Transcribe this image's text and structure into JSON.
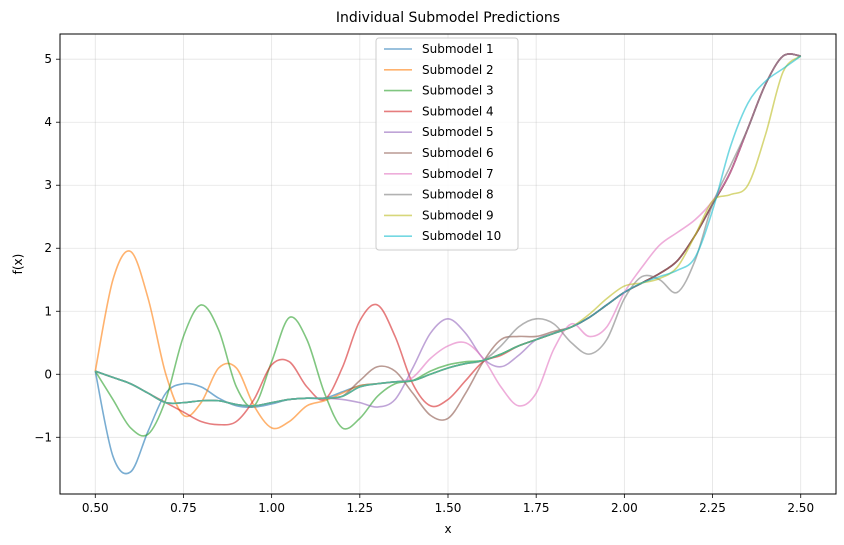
{
  "chart_data": {
    "type": "line",
    "title": "Individual Submodel Predictions",
    "xlabel": "x",
    "ylabel": "f(x)",
    "xlim": [
      0.4,
      2.6
    ],
    "ylim": [
      -1.9,
      5.4
    ],
    "xticks": [
      0.5,
      0.75,
      1.0,
      1.25,
      1.5,
      1.75,
      2.0,
      2.25,
      2.5
    ],
    "xtick_labels": [
      "0.50",
      "0.75",
      "1.00",
      "1.25",
      "1.50",
      "1.75",
      "2.00",
      "2.25",
      "2.50"
    ],
    "yticks": [
      -1,
      0,
      1,
      2,
      3,
      4,
      5
    ],
    "ytick_labels": [
      "−1",
      "0",
      "1",
      "2",
      "3",
      "4",
      "5"
    ],
    "grid": true,
    "legend_position": "top-center",
    "series": [
      {
        "name": "Submodel 1",
        "color": "#1f77b4",
        "x": [
          0.5,
          0.55,
          0.6,
          0.65,
          0.7,
          0.75,
          0.8,
          0.85,
          0.9,
          0.95,
          1.0,
          1.05,
          1.1,
          1.15,
          1.2,
          1.25,
          1.3,
          1.35,
          1.4,
          1.45,
          1.5,
          1.55,
          1.6,
          1.65,
          1.7,
          1.75,
          1.8,
          1.85,
          1.9,
          1.95,
          2.0,
          2.05,
          2.1,
          2.15,
          2.2,
          2.25,
          2.3,
          2.35,
          2.4,
          2.45,
          2.5
        ],
        "y": [
          0.05,
          -1.3,
          -1.55,
          -0.9,
          -0.3,
          -0.15,
          -0.2,
          -0.38,
          -0.5,
          -0.52,
          -0.47,
          -0.4,
          -0.38,
          -0.38,
          -0.28,
          -0.18,
          -0.15,
          -0.12,
          -0.1,
          0.0,
          0.1,
          0.17,
          0.22,
          0.32,
          0.45,
          0.55,
          0.65,
          0.75,
          0.9,
          1.1,
          1.3,
          1.45,
          1.6,
          1.8,
          2.2,
          2.7,
          3.2,
          3.9,
          4.6,
          5.05,
          5.05
        ]
      },
      {
        "name": "Submodel 2",
        "color": "#ff7f0e",
        "x": [
          0.5,
          0.55,
          0.6,
          0.65,
          0.7,
          0.75,
          0.8,
          0.85,
          0.9,
          0.95,
          1.0,
          1.05,
          1.1,
          1.15,
          1.2,
          1.25,
          1.3,
          1.35,
          1.4,
          1.45,
          1.5,
          1.55,
          1.6,
          1.65,
          1.7,
          1.75,
          1.8,
          1.85,
          1.9,
          1.95,
          2.0,
          2.05,
          2.1,
          2.15,
          2.2,
          2.25,
          2.3,
          2.35,
          2.4,
          2.45,
          2.5
        ],
        "y": [
          0.05,
          1.5,
          1.95,
          1.2,
          0.0,
          -0.65,
          -0.45,
          0.1,
          0.1,
          -0.5,
          -0.85,
          -0.75,
          -0.5,
          -0.42,
          -0.3,
          -0.18,
          -0.15,
          -0.12,
          -0.1,
          0.0,
          0.1,
          0.17,
          0.22,
          0.32,
          0.45,
          0.55,
          0.65,
          0.75,
          0.9,
          1.1,
          1.3,
          1.45,
          1.6,
          1.8,
          2.2,
          2.7,
          3.2,
          3.9,
          4.6,
          5.05,
          5.05
        ]
      },
      {
        "name": "Submodel 3",
        "color": "#2ca02c",
        "x": [
          0.5,
          0.55,
          0.6,
          0.65,
          0.7,
          0.75,
          0.8,
          0.85,
          0.9,
          0.95,
          1.0,
          1.05,
          1.1,
          1.15,
          1.2,
          1.25,
          1.3,
          1.35,
          1.4,
          1.45,
          1.5,
          1.55,
          1.6,
          1.65,
          1.7,
          1.75,
          1.8,
          1.85,
          1.9,
          1.95,
          2.0,
          2.05,
          2.1,
          2.15,
          2.2,
          2.25,
          2.3,
          2.35,
          2.4,
          2.45,
          2.5
        ],
        "y": [
          0.05,
          -0.4,
          -0.85,
          -0.95,
          -0.4,
          0.6,
          1.1,
          0.7,
          -0.2,
          -0.5,
          0.2,
          0.9,
          0.55,
          -0.3,
          -0.85,
          -0.7,
          -0.35,
          -0.15,
          -0.1,
          0.05,
          0.15,
          0.2,
          0.22,
          0.32,
          0.45,
          0.55,
          0.65,
          0.75,
          0.9,
          1.1,
          1.3,
          1.45,
          1.6,
          1.8,
          2.2,
          2.7,
          3.2,
          3.9,
          4.6,
          5.05,
          5.05
        ]
      },
      {
        "name": "Submodel 4",
        "color": "#d62728",
        "x": [
          0.5,
          0.55,
          0.6,
          0.65,
          0.7,
          0.75,
          0.8,
          0.85,
          0.9,
          0.95,
          1.0,
          1.05,
          1.1,
          1.15,
          1.2,
          1.25,
          1.3,
          1.35,
          1.4,
          1.45,
          1.5,
          1.55,
          1.6,
          1.65,
          1.7,
          1.75,
          1.8,
          1.85,
          1.9,
          1.95,
          2.0,
          2.05,
          2.1,
          2.15,
          2.2,
          2.25,
          2.3,
          2.35,
          2.4,
          2.45,
          2.5
        ],
        "y": [
          0.05,
          -0.05,
          -0.15,
          -0.3,
          -0.45,
          -0.6,
          -0.75,
          -0.8,
          -0.75,
          -0.4,
          0.15,
          0.2,
          -0.2,
          -0.4,
          0.1,
          0.85,
          1.1,
          0.6,
          -0.15,
          -0.5,
          -0.4,
          -0.1,
          0.2,
          0.3,
          0.45,
          0.55,
          0.65,
          0.75,
          0.9,
          1.1,
          1.3,
          1.45,
          1.6,
          1.8,
          2.2,
          2.7,
          3.2,
          3.9,
          4.6,
          5.05,
          5.05
        ]
      },
      {
        "name": "Submodel 5",
        "color": "#9467bd",
        "x": [
          0.5,
          0.55,
          0.6,
          0.65,
          0.7,
          0.75,
          0.8,
          0.85,
          0.9,
          0.95,
          1.0,
          1.05,
          1.1,
          1.15,
          1.2,
          1.25,
          1.3,
          1.35,
          1.4,
          1.45,
          1.5,
          1.55,
          1.6,
          1.65,
          1.7,
          1.75,
          1.8,
          1.85,
          1.9,
          1.95,
          2.0,
          2.05,
          2.1,
          2.15,
          2.2,
          2.25,
          2.3,
          2.35,
          2.4,
          2.45,
          2.5
        ],
        "y": [
          0.05,
          -0.05,
          -0.15,
          -0.3,
          -0.45,
          -0.45,
          -0.42,
          -0.42,
          -0.48,
          -0.5,
          -0.45,
          -0.4,
          -0.38,
          -0.38,
          -0.4,
          -0.45,
          -0.52,
          -0.4,
          0.1,
          0.65,
          0.88,
          0.65,
          0.25,
          0.12,
          0.3,
          0.55,
          0.65,
          0.75,
          0.9,
          1.1,
          1.3,
          1.45,
          1.6,
          1.8,
          2.2,
          2.7,
          3.2,
          3.9,
          4.6,
          5.05,
          5.05
        ]
      },
      {
        "name": "Submodel 6",
        "color": "#8c564b",
        "x": [
          0.5,
          0.55,
          0.6,
          0.65,
          0.7,
          0.75,
          0.8,
          0.85,
          0.9,
          0.95,
          1.0,
          1.05,
          1.1,
          1.15,
          1.2,
          1.25,
          1.3,
          1.35,
          1.4,
          1.45,
          1.5,
          1.55,
          1.6,
          1.65,
          1.7,
          1.75,
          1.8,
          1.85,
          1.9,
          1.95,
          2.0,
          2.05,
          2.1,
          2.15,
          2.2,
          2.25,
          2.3,
          2.35,
          2.4,
          2.45,
          2.5
        ],
        "y": [
          0.05,
          -0.05,
          -0.15,
          -0.3,
          -0.45,
          -0.45,
          -0.42,
          -0.42,
          -0.48,
          -0.5,
          -0.45,
          -0.4,
          -0.38,
          -0.38,
          -0.35,
          -0.1,
          0.12,
          0.05,
          -0.3,
          -0.65,
          -0.7,
          -0.3,
          0.2,
          0.55,
          0.6,
          0.6,
          0.68,
          0.75,
          0.9,
          1.1,
          1.3,
          1.45,
          1.6,
          1.8,
          2.2,
          2.7,
          3.2,
          3.9,
          4.6,
          5.05,
          5.05
        ]
      },
      {
        "name": "Submodel 7",
        "color": "#e377c2",
        "x": [
          0.5,
          0.55,
          0.6,
          0.65,
          0.7,
          0.75,
          0.8,
          0.85,
          0.9,
          0.95,
          1.0,
          1.05,
          1.1,
          1.15,
          1.2,
          1.25,
          1.3,
          1.35,
          1.4,
          1.45,
          1.5,
          1.55,
          1.6,
          1.65,
          1.7,
          1.75,
          1.8,
          1.85,
          1.9,
          1.95,
          2.0,
          2.05,
          2.1,
          2.15,
          2.2,
          2.25,
          2.3,
          2.35,
          2.4,
          2.45,
          2.5
        ],
        "y": [
          0.05,
          -0.05,
          -0.15,
          -0.3,
          -0.45,
          -0.45,
          -0.42,
          -0.42,
          -0.48,
          -0.5,
          -0.45,
          -0.4,
          -0.38,
          -0.38,
          -0.35,
          -0.2,
          -0.15,
          -0.12,
          -0.05,
          0.25,
          0.45,
          0.5,
          0.25,
          -0.2,
          -0.5,
          -0.3,
          0.4,
          0.8,
          0.6,
          0.75,
          1.3,
          1.7,
          2.05,
          2.25,
          2.45,
          2.75,
          3.2,
          3.9,
          4.6,
          5.05,
          5.05
        ]
      },
      {
        "name": "Submodel 8",
        "color": "#7f7f7f",
        "x": [
          0.5,
          0.55,
          0.6,
          0.65,
          0.7,
          0.75,
          0.8,
          0.85,
          0.9,
          0.95,
          1.0,
          1.05,
          1.1,
          1.15,
          1.2,
          1.25,
          1.3,
          1.35,
          1.4,
          1.45,
          1.5,
          1.55,
          1.6,
          1.65,
          1.7,
          1.75,
          1.8,
          1.85,
          1.9,
          1.95,
          2.0,
          2.05,
          2.1,
          2.15,
          2.2,
          2.25,
          2.3,
          2.35,
          2.4,
          2.45,
          2.5
        ],
        "y": [
          0.05,
          -0.05,
          -0.15,
          -0.3,
          -0.45,
          -0.45,
          -0.42,
          -0.42,
          -0.48,
          -0.5,
          -0.45,
          -0.4,
          -0.38,
          -0.38,
          -0.35,
          -0.2,
          -0.15,
          -0.12,
          -0.1,
          0.0,
          0.1,
          0.17,
          0.22,
          0.45,
          0.75,
          0.88,
          0.8,
          0.5,
          0.32,
          0.55,
          1.2,
          1.55,
          1.5,
          1.3,
          1.8,
          2.7,
          3.3,
          3.9,
          4.6,
          5.05,
          5.05
        ]
      },
      {
        "name": "Submodel 9",
        "color": "#bcbd22",
        "x": [
          0.5,
          0.55,
          0.6,
          0.65,
          0.7,
          0.75,
          0.8,
          0.85,
          0.9,
          0.95,
          1.0,
          1.05,
          1.1,
          1.15,
          1.2,
          1.25,
          1.3,
          1.35,
          1.4,
          1.45,
          1.5,
          1.55,
          1.6,
          1.65,
          1.7,
          1.75,
          1.8,
          1.85,
          1.9,
          1.95,
          2.0,
          2.05,
          2.1,
          2.15,
          2.2,
          2.25,
          2.3,
          2.35,
          2.4,
          2.45,
          2.5
        ],
        "y": [
          0.05,
          -0.05,
          -0.15,
          -0.3,
          -0.45,
          -0.45,
          -0.42,
          -0.42,
          -0.48,
          -0.5,
          -0.45,
          -0.4,
          -0.38,
          -0.38,
          -0.35,
          -0.2,
          -0.15,
          -0.12,
          -0.1,
          0.0,
          0.1,
          0.17,
          0.22,
          0.32,
          0.45,
          0.55,
          0.65,
          0.75,
          0.95,
          1.2,
          1.4,
          1.45,
          1.52,
          1.7,
          2.2,
          2.75,
          2.85,
          3.0,
          3.8,
          4.8,
          5.05
        ]
      },
      {
        "name": "Submodel 10",
        "color": "#17becf",
        "x": [
          0.5,
          0.55,
          0.6,
          0.65,
          0.7,
          0.75,
          0.8,
          0.85,
          0.9,
          0.95,
          1.0,
          1.05,
          1.1,
          1.15,
          1.2,
          1.25,
          1.3,
          1.35,
          1.4,
          1.45,
          1.5,
          1.55,
          1.6,
          1.65,
          1.7,
          1.75,
          1.8,
          1.85,
          1.9,
          1.95,
          2.0,
          2.05,
          2.1,
          2.15,
          2.2,
          2.25,
          2.3,
          2.35,
          2.4,
          2.45,
          2.5
        ],
        "y": [
          0.05,
          -0.05,
          -0.15,
          -0.3,
          -0.45,
          -0.45,
          -0.42,
          -0.42,
          -0.48,
          -0.5,
          -0.45,
          -0.4,
          -0.38,
          -0.38,
          -0.35,
          -0.2,
          -0.15,
          -0.12,
          -0.1,
          0.0,
          0.1,
          0.17,
          0.22,
          0.32,
          0.45,
          0.55,
          0.65,
          0.75,
          0.9,
          1.1,
          1.3,
          1.45,
          1.55,
          1.65,
          1.85,
          2.6,
          3.6,
          4.3,
          4.65,
          4.85,
          5.05
        ]
      }
    ]
  }
}
